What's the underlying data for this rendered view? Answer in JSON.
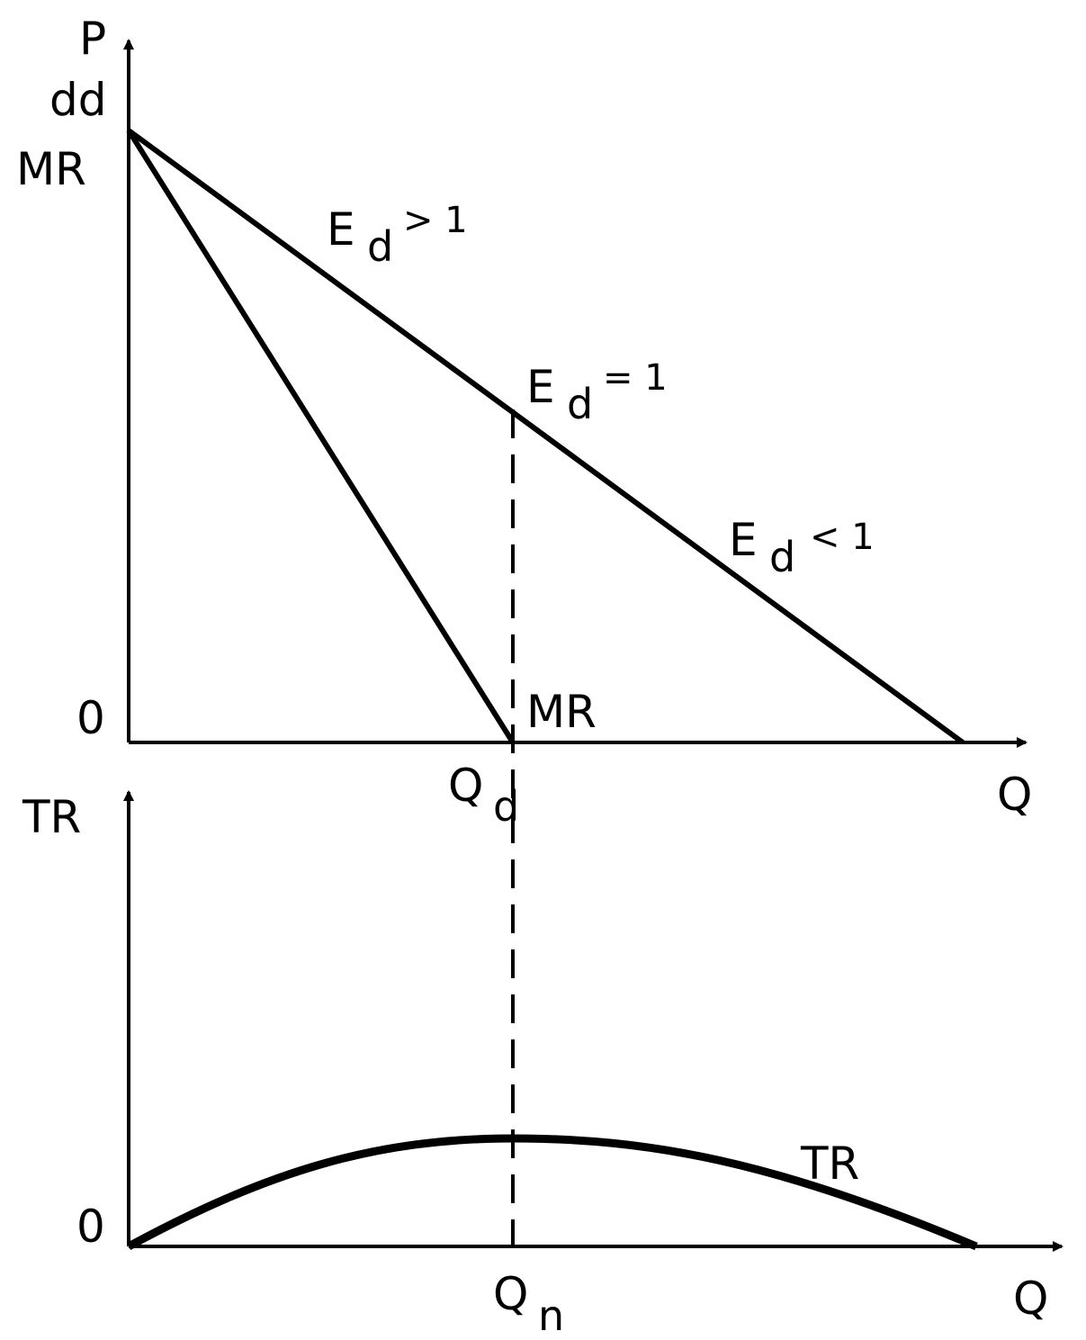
{
  "top_panel": {
    "y_axis_labels": [
      "P",
      "dd",
      "MR"
    ],
    "origin": "0",
    "x_axis_label": "Q",
    "quantity_mark": {
      "main": "Q",
      "sub": "d"
    },
    "mr_label": "MR",
    "elasticity_labels": [
      {
        "main": "E",
        "sub": "d",
        "relation": "> 1"
      },
      {
        "main": "E",
        "sub": "d",
        "relation": "= 1"
      },
      {
        "main": "E",
        "sub": "d",
        "relation": "< 1"
      }
    ]
  },
  "bottom_panel": {
    "y_axis_label": "TR",
    "origin": "0",
    "x_axis_label": "Q",
    "quantity_mark": {
      "main": "Q",
      "sub": "n"
    },
    "curve_label": "TR"
  }
}
